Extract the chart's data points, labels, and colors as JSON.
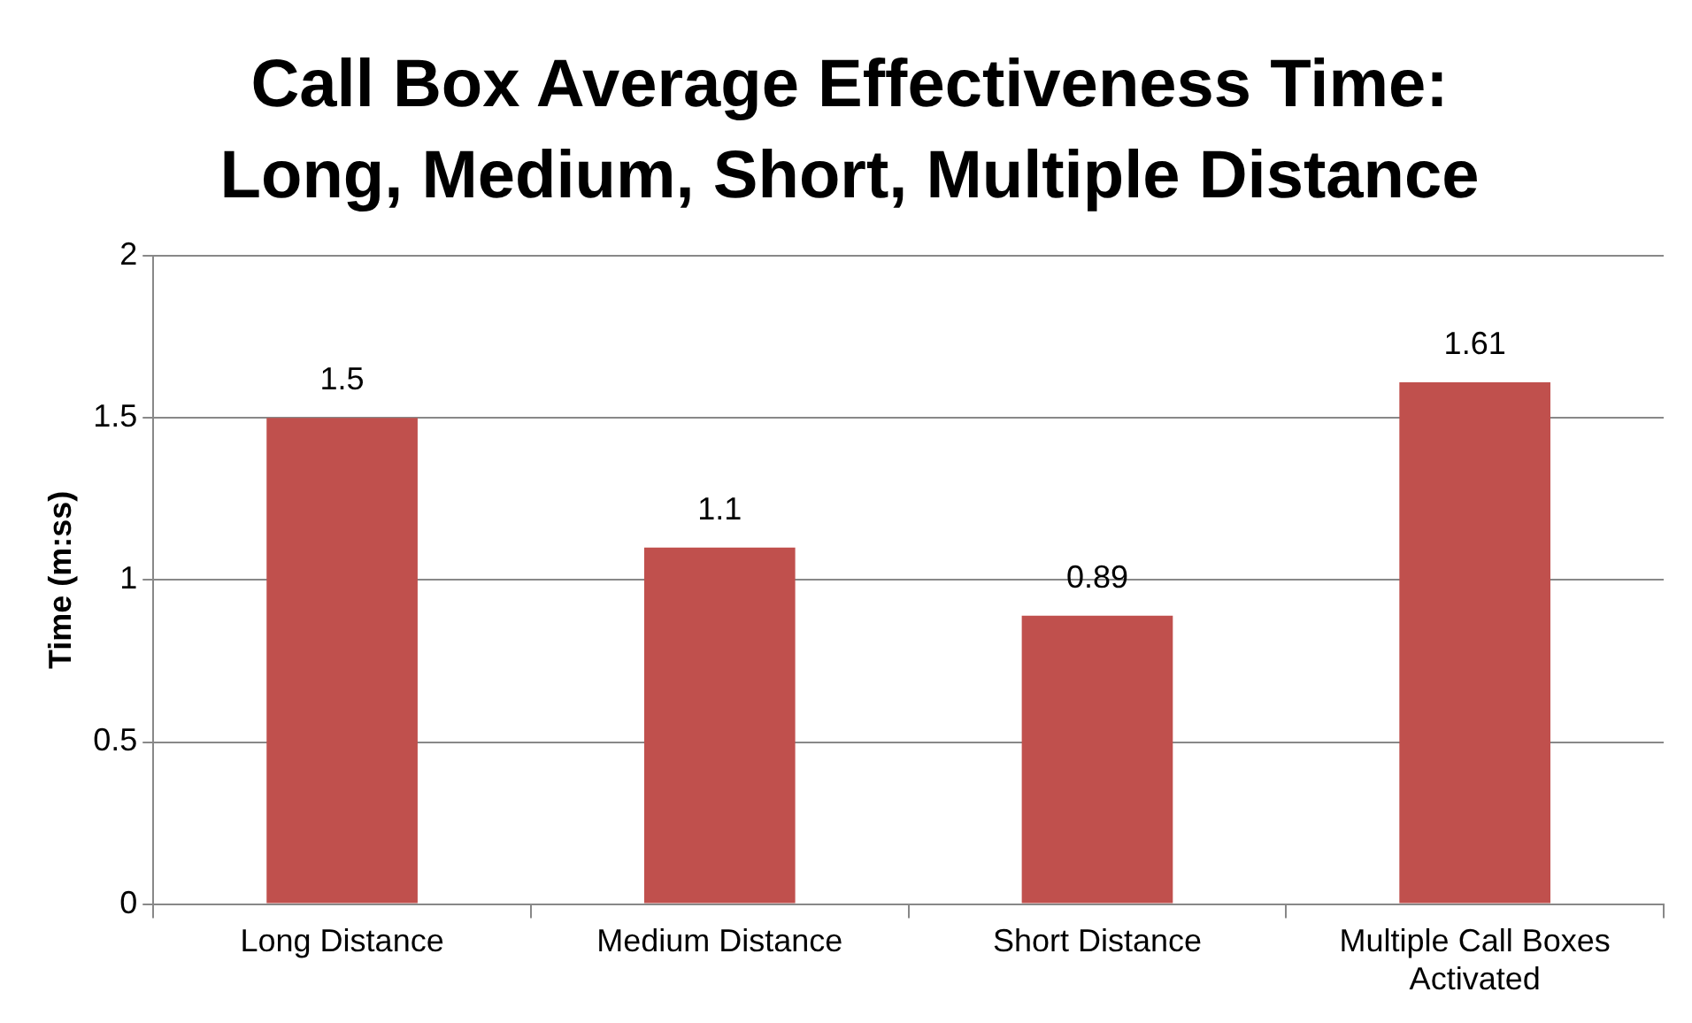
{
  "chart_data": {
    "type": "bar",
    "title": "Call Box Average Effectiveness Time: Long, Medium, Short, Multiple Distance",
    "ylabel": "Time (m:ss)",
    "categories": [
      "Long Distance",
      "Medium Distance",
      "Short Distance",
      "Multiple Call Boxes Activated"
    ],
    "values": [
      1.5,
      1.1,
      0.89,
      1.61
    ],
    "color": "#c0504d",
    "ylim": [
      0,
      2
    ],
    "yticks": [
      0,
      0.5,
      1,
      1.5,
      2
    ],
    "grid": "y",
    "data_labels": true,
    "legend": false
  }
}
